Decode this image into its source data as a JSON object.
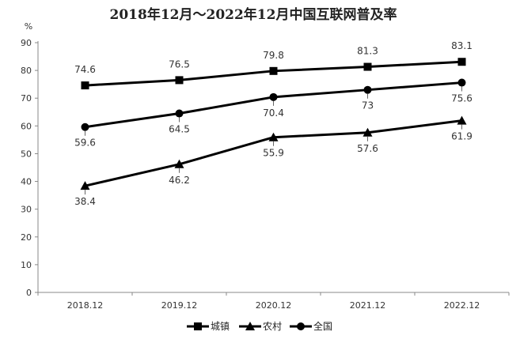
{
  "chart_data": {
    "type": "line",
    "title": "2018年12月～2022年12月中国互联网普及率",
    "ylabel": "%",
    "xlabel": "",
    "categories": [
      "2018.12",
      "2019.12",
      "2020.12",
      "2021.12",
      "2022.12"
    ],
    "ylim": [
      0,
      90
    ],
    "yticks": [
      0,
      10,
      20,
      30,
      40,
      50,
      60,
      70,
      80,
      90
    ],
    "grid": false,
    "legend_position": "bottom",
    "series": [
      {
        "name": "城镇",
        "marker": "square",
        "values": [
          74.6,
          76.5,
          79.8,
          81.3,
          83.1
        ],
        "value_labels": [
          "74.6",
          "76.5",
          "79.8",
          "81.3",
          "83.1"
        ],
        "label_side": "above"
      },
      {
        "name": "农村",
        "marker": "triangle",
        "values": [
          38.4,
          46.2,
          55.9,
          57.6,
          61.9
        ],
        "value_labels": [
          "38.4",
          "46.2",
          "55.9",
          "57.6",
          "61.9"
        ],
        "label_side": "below"
      },
      {
        "name": "全国",
        "marker": "circle",
        "values": [
          59.6,
          64.5,
          70.4,
          73,
          75.6
        ],
        "value_labels": [
          "59.6",
          "64.5",
          "70.4",
          "73",
          "75.6"
        ],
        "label_side": "below"
      }
    ],
    "legend_order": [
      0,
      1,
      2
    ],
    "line_color": "#000000"
  }
}
